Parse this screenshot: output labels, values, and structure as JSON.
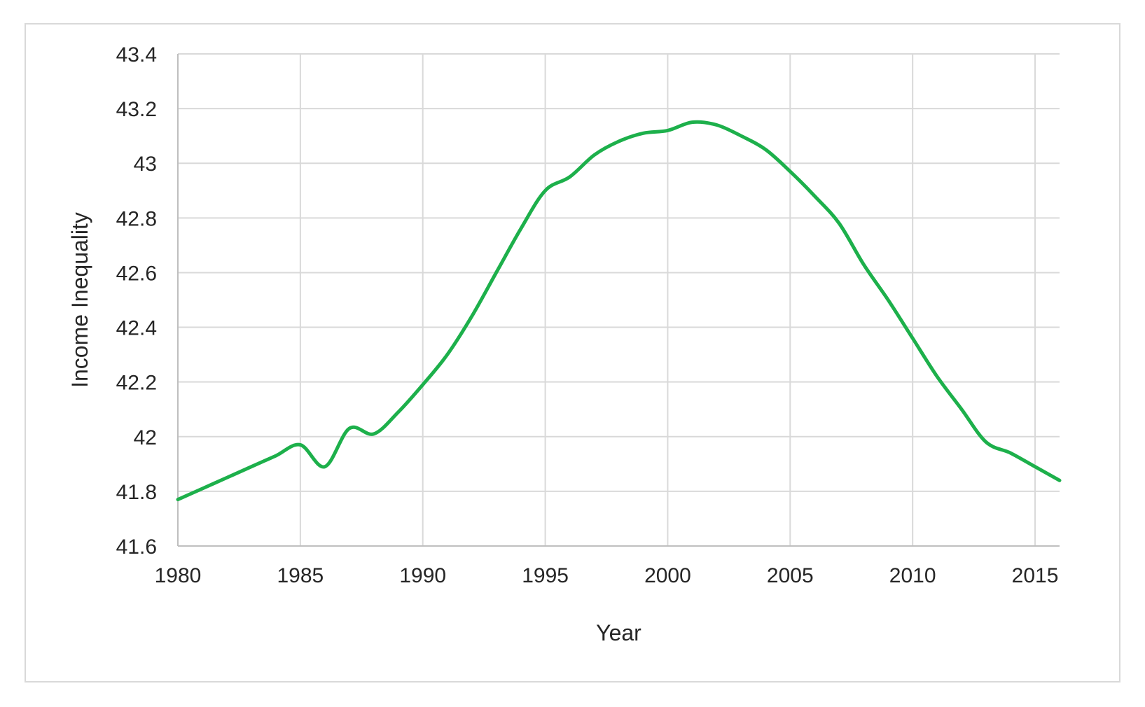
{
  "chart_data": {
    "type": "line",
    "title": "",
    "xlabel": "Year",
    "ylabel": "Income Inequality",
    "xlim": [
      1980,
      2016
    ],
    "ylim": [
      41.6,
      43.4
    ],
    "x_ticks": [
      1980,
      1985,
      1990,
      1995,
      2000,
      2005,
      2010,
      2015
    ],
    "x_tick_labels": [
      "1980",
      "1985",
      "1990",
      "1995",
      "2000",
      "2005",
      "2010",
      "2015"
    ],
    "y_ticks": [
      41.6,
      41.8,
      42.0,
      42.2,
      42.4,
      42.6,
      42.8,
      43.0,
      43.2,
      43.4
    ],
    "y_tick_labels": [
      "41.6",
      "41.8",
      "42",
      "42.2",
      "42.4",
      "42.6",
      "42.8",
      "43",
      "43.2",
      "43.4"
    ],
    "grid": true,
    "legend": "none",
    "line_color": "#1db04b",
    "series": [
      {
        "x": [
          1980,
          1981,
          1982,
          1983,
          1984,
          1985,
          1986,
          1987,
          1988,
          1989,
          1990,
          1991,
          1992,
          1993,
          1994,
          1995,
          1996,
          1997,
          1998,
          1999,
          2000,
          2001,
          2002,
          2003,
          2004,
          2005,
          2006,
          2007,
          2008,
          2009,
          2010,
          2011,
          2012,
          2013,
          2014,
          2015,
          2016
        ],
        "values": [
          41.77,
          41.81,
          41.85,
          41.89,
          41.93,
          41.97,
          41.89,
          42.03,
          42.01,
          42.09,
          42.19,
          42.3,
          42.44,
          42.6,
          42.76,
          42.9,
          42.95,
          43.03,
          43.08,
          43.11,
          43.12,
          43.15,
          43.14,
          43.1,
          43.05,
          42.97,
          42.88,
          42.78,
          42.63,
          42.5,
          42.36,
          42.22,
          42.1,
          41.98,
          41.94,
          41.89,
          41.84
        ]
      }
    ]
  }
}
